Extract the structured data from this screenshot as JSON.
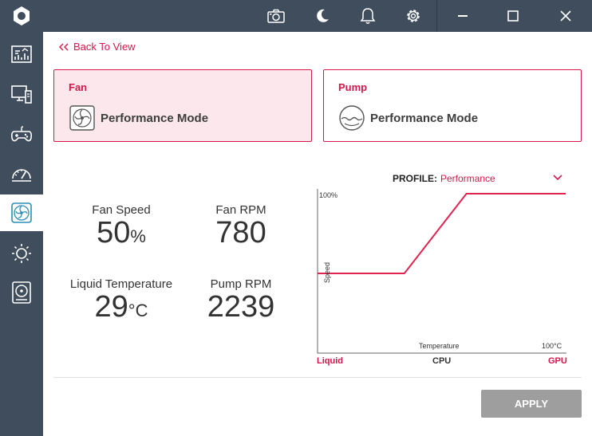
{
  "back_label": "Back To View",
  "cards": {
    "fan": {
      "title": "Fan",
      "mode": "Performance Mode"
    },
    "pump": {
      "title": "Pump",
      "mode": "Performance Mode"
    }
  },
  "stats": {
    "fan_speed": {
      "label": "Fan Speed",
      "value": "50",
      "unit": "%"
    },
    "fan_rpm": {
      "label": "Fan RPM",
      "value": "780"
    },
    "liquid_temp": {
      "label": "Liquid Temperature",
      "value": "29",
      "unit": "°C"
    },
    "pump_rpm": {
      "label": "Pump RPM",
      "value": "2239"
    }
  },
  "profile": {
    "label": "PROFILE:",
    "value": "Performance"
  },
  "graph": {
    "y_max_label": "100%",
    "y_axis_label": "Speed",
    "x_axis_label": "Temperature",
    "x_max_label": "100°C",
    "source_labels": {
      "liquid": "Liquid",
      "cpu": "CPU",
      "gpu": "GPU"
    },
    "curve_points": [
      [
        0,
        50
      ],
      [
        35,
        50
      ],
      [
        60,
        100
      ],
      [
        100,
        100
      ]
    ]
  },
  "apply_label": "APPLY",
  "colors": {
    "accent": "#d4174a",
    "sidebar": "#3f4d5c",
    "apply_disabled": "#9e9e9e"
  },
  "icons": {
    "sidebar": [
      "logo-icon",
      "dashboard-icon",
      "system-icon",
      "gamepad-icon",
      "gauge-icon",
      "fan-icon",
      "lighting-icon",
      "storage-icon"
    ],
    "topbar": [
      "camera-icon",
      "moon-icon",
      "bell-icon",
      "gear-icon",
      "minimize-icon",
      "maximize-icon",
      "close-icon"
    ]
  }
}
